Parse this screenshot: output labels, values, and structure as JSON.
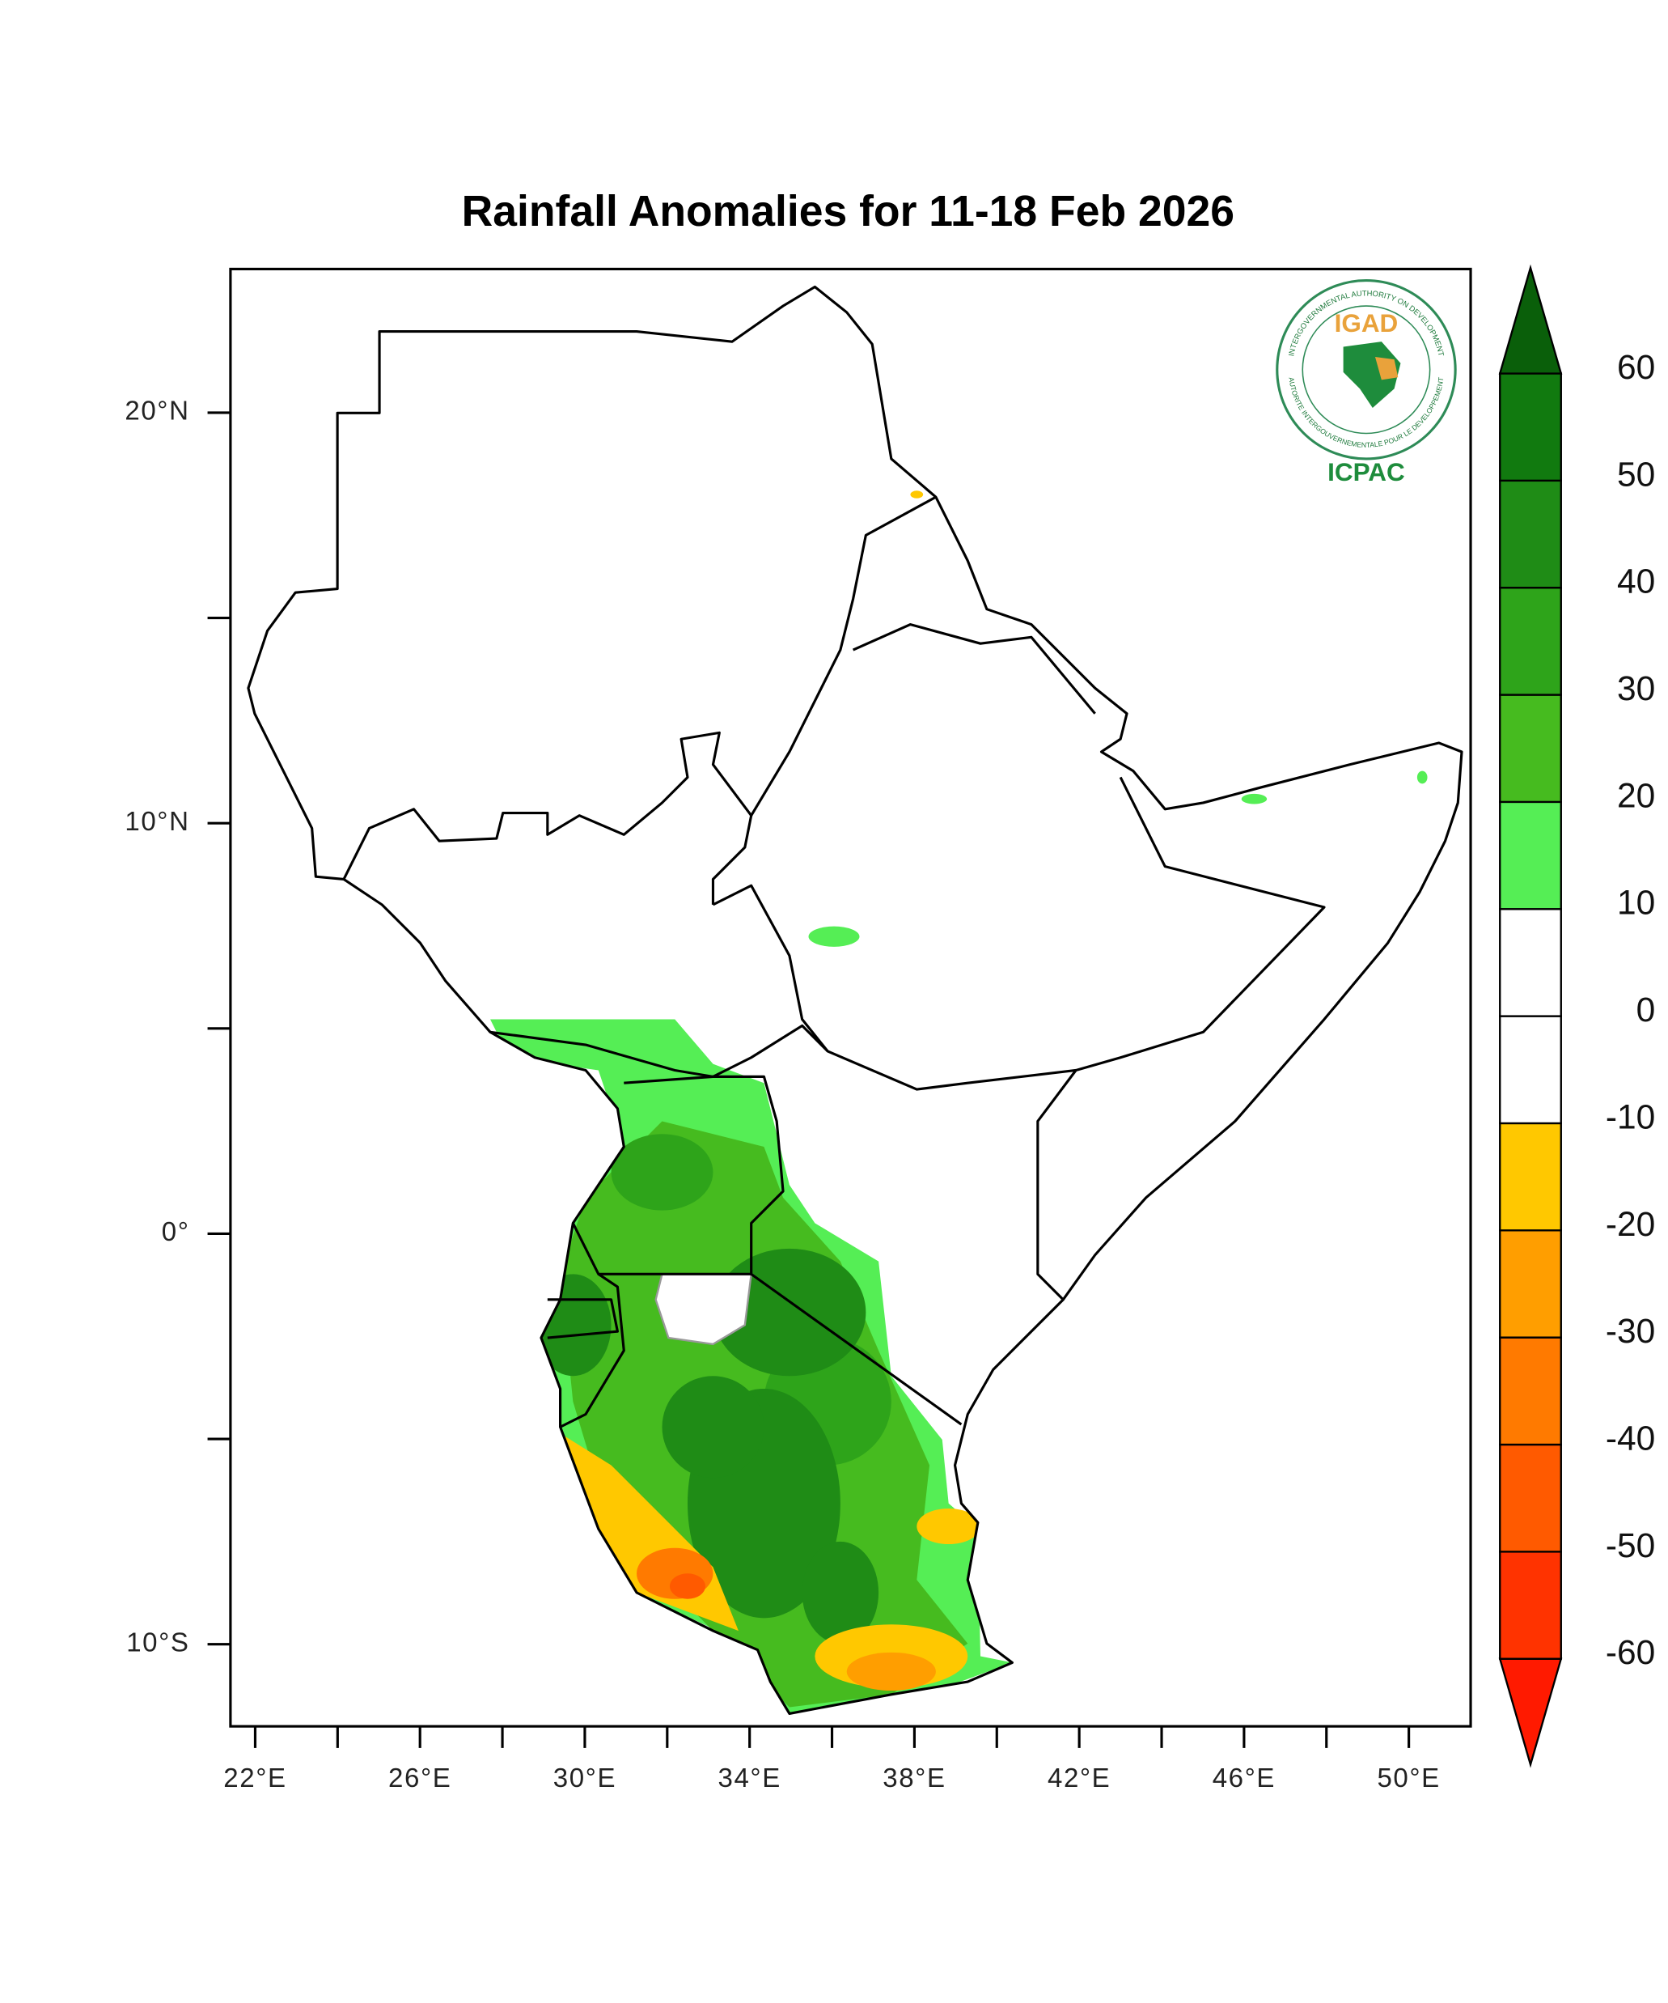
{
  "title": "Rainfall Anomalies for 11-18 Feb 2026",
  "map": {
    "xlim": [
      21.4,
      51.5
    ],
    "ylim": [
      -12,
      23.5
    ],
    "xticks": [
      {
        "value": 22,
        "label": "22°E"
      },
      {
        "value": 26,
        "label": "26°E"
      },
      {
        "value": 30,
        "label": "30°E"
      },
      {
        "value": 34,
        "label": "34°E"
      },
      {
        "value": 38,
        "label": "38°E"
      },
      {
        "value": 42,
        "label": "42°E"
      },
      {
        "value": 46,
        "label": "46°E"
      },
      {
        "value": 50,
        "label": "50°E"
      }
    ],
    "xminor": [
      24,
      28,
      32,
      36,
      40,
      44,
      48
    ],
    "yticks": [
      {
        "value": 20,
        "label": "20°N"
      },
      {
        "value": 10,
        "label": "10°N"
      },
      {
        "value": 0,
        "label": "0°"
      },
      {
        "value": -10,
        "label": "10°S"
      }
    ],
    "yminor": [
      15,
      5,
      -5
    ]
  },
  "colorbar": {
    "levels": [
      -60,
      -50,
      -40,
      -30,
      -20,
      -10,
      0,
      10,
      20,
      30,
      40,
      50,
      60
    ],
    "colors": [
      "#ff1a00",
      "#ff3300",
      "#ff5a00",
      "#ff7a00",
      "#ff9e00",
      "#ffc800",
      "#ffffff",
      "#ffffff",
      "#55ee55",
      "#46bb1f",
      "#2ea41a",
      "#1f8c16",
      "#117a0f",
      "#0a5f0a"
    ]
  },
  "logo": {
    "name": "IGAD",
    "centre": "ICPAC",
    "ring_top": "INTERGOVERNMENTAL AUTHORITY ON DEVELOPMENT",
    "ring_bottom": "AUTORITE INTERGOUVERNEMENTALE POUR LE DEVELOPPEMENT"
  }
}
